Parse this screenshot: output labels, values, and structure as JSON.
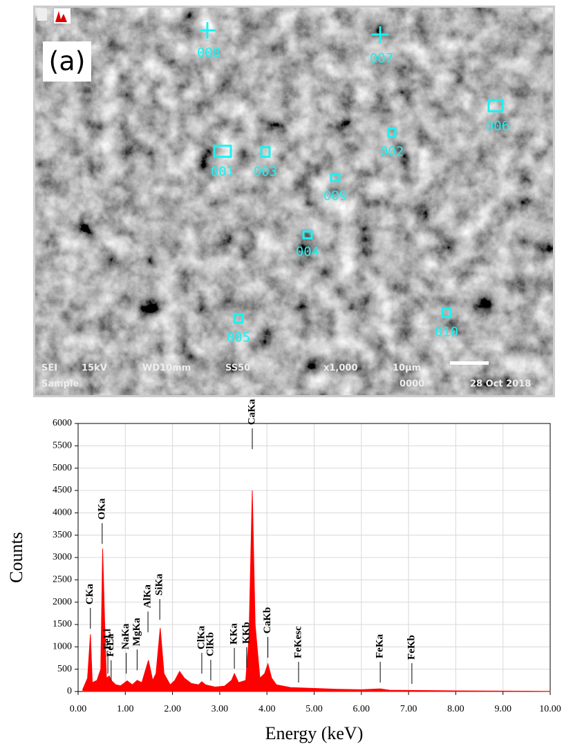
{
  "image": {
    "panel_label": "(a)",
    "points": [
      "001",
      "002",
      "003",
      "004",
      "005",
      "006",
      "007",
      "008",
      "009",
      "010"
    ],
    "info": [
      "SEI",
      "15kV",
      "WD10mm",
      "SS50",
      "x1,000",
      "10μm",
      "Sample",
      "0000",
      "28 Oct 2018"
    ]
  },
  "chart_data": {
    "type": "area",
    "x_label": "Energy (keV)",
    "y_label": "Counts",
    "color": "#ff0000",
    "grid": true,
    "xlim": [
      0,
      10
    ],
    "ylim": [
      0,
      6000
    ],
    "xticks": [
      {
        "value": 0,
        "label": "0.00"
      },
      {
        "value": 1,
        "label": "1.00"
      },
      {
        "value": 2,
        "label": "2.00"
      },
      {
        "value": 3,
        "label": "3.00"
      },
      {
        "value": 4,
        "label": "4.00"
      },
      {
        "value": 5,
        "label": "5.00"
      },
      {
        "value": 6,
        "label": "6.00"
      },
      {
        "value": 7,
        "label": "7.00"
      },
      {
        "value": 8,
        "label": "8.00"
      },
      {
        "value": 9,
        "label": "9.00"
      },
      {
        "value": 10,
        "label": "10.00"
      }
    ],
    "yticks": [
      0,
      500,
      1000,
      1500,
      2000,
      2500,
      3000,
      3500,
      4000,
      4500,
      5000,
      5500,
      6000
    ],
    "x": [
      0.1,
      0.2,
      0.26,
      0.3,
      0.4,
      0.48,
      0.52,
      0.56,
      0.6,
      0.66,
      0.7,
      0.8,
      0.9,
      1.04,
      1.15,
      1.25,
      1.35,
      1.49,
      1.58,
      1.65,
      1.74,
      1.82,
      1.95,
      2.05,
      2.15,
      2.25,
      2.4,
      2.55,
      2.62,
      2.7,
      2.9,
      3.1,
      3.25,
      3.31,
      3.4,
      3.55,
      3.62,
      3.69,
      3.75,
      3.85,
      3.95,
      4.02,
      4.1,
      4.2,
      4.5,
      5,
      5.5,
      6,
      6.4,
      6.6,
      7,
      8,
      9,
      10
    ],
    "values": [
      50,
      300,
      1280,
      200,
      250,
      500,
      3200,
      1650,
      300,
      350,
      250,
      150,
      130,
      240,
      150,
      250,
      200,
      700,
      250,
      400,
      1420,
      400,
      150,
      250,
      450,
      300,
      180,
      150,
      220,
      150,
      100,
      120,
      250,
      400,
      200,
      250,
      1200,
      4500,
      1500,
      300,
      400,
      620,
      300,
      150,
      90,
      70,
      50,
      40,
      60,
      30,
      25,
      15,
      10,
      5
    ],
    "peaks": [
      {
        "label": "CKa",
        "x": 0.26,
        "y": 1870
      },
      {
        "label": "OKa",
        "x": 0.51,
        "y": 3770
      },
      {
        "label": "FeLl",
        "x": 0.63,
        "y": 865
      },
      {
        "label": "FeLa",
        "x": 0.7,
        "y": 700
      },
      {
        "label": "NaKa",
        "x": 1.02,
        "y": 865
      },
      {
        "label": "MgKa",
        "x": 1.25,
        "y": 940
      },
      {
        "label": "AlKa",
        "x": 1.48,
        "y": 1790
      },
      {
        "label": "SiKa",
        "x": 1.73,
        "y": 2070
      },
      {
        "label": "ClKa",
        "x": 2.62,
        "y": 865
      },
      {
        "label": "ClKb",
        "x": 2.81,
        "y": 710
      },
      {
        "label": "KKa",
        "x": 3.31,
        "y": 975
      },
      {
        "label": "KKb",
        "x": 3.57,
        "y": 990
      },
      {
        "label": "CaKa",
        "x": 3.69,
        "y": 5890
      },
      {
        "label": "CaKb",
        "x": 4.02,
        "y": 1220
      },
      {
        "label": "FeKesc",
        "x": 4.67,
        "y": 665
      },
      {
        "label": "FeKa",
        "x": 6.4,
        "y": 665
      },
      {
        "label": "FeKb",
        "x": 7.07,
        "y": 635
      }
    ]
  }
}
